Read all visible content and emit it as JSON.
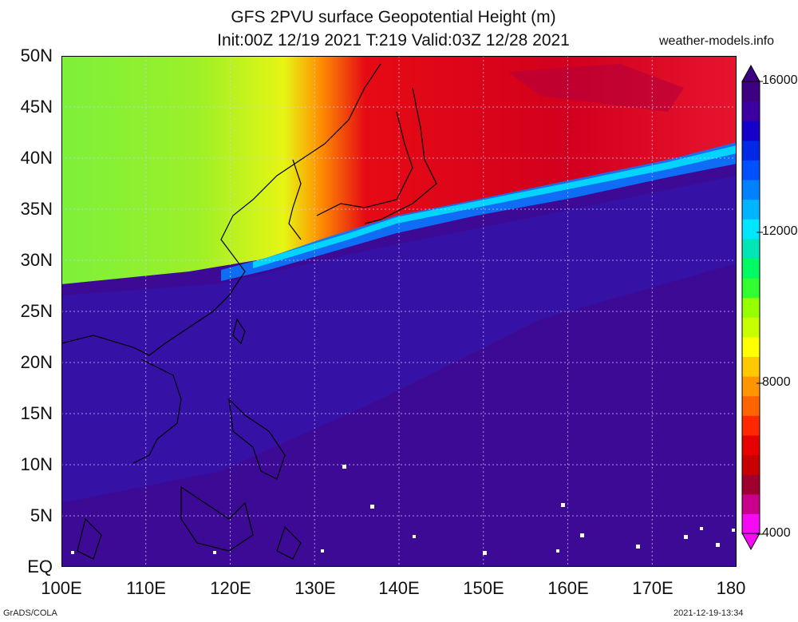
{
  "title": {
    "line1": "GFS 2PVU surface Geopotential Height (m)",
    "line2": "Init:00Z 12/19 2021 T:219 Valid:03Z 12/28 2021"
  },
  "site": "weather-models.info",
  "axes": {
    "lat_labels": [
      "50N",
      "45N",
      "40N",
      "35N",
      "30N",
      "25N",
      "20N",
      "15N",
      "10N",
      "5N",
      "EQ"
    ],
    "lon_labels": [
      "100E",
      "110E",
      "120E",
      "130E",
      "140E",
      "150E",
      "160E",
      "170E",
      "180"
    ]
  },
  "colorbar": {
    "labels": [
      "16000",
      "12000",
      "8000",
      "4000"
    ],
    "colors": [
      "#f50af5",
      "#c8008c",
      "#a0002d",
      "#c80000",
      "#e60000",
      "#ff2800",
      "#ff6400",
      "#ff9600",
      "#ffc800",
      "#ffff00",
      "#c8ff00",
      "#96ff00",
      "#32ff32",
      "#00fa64",
      "#00e6b4",
      "#00e6ff",
      "#00b4ff",
      "#0082ff",
      "#0050ff",
      "#0028e6",
      "#1400c8",
      "#3c00a0",
      "#3c0080"
    ]
  },
  "footer": {
    "left": "GrADS/COLA",
    "right": "2021-12-19-13:34"
  }
}
